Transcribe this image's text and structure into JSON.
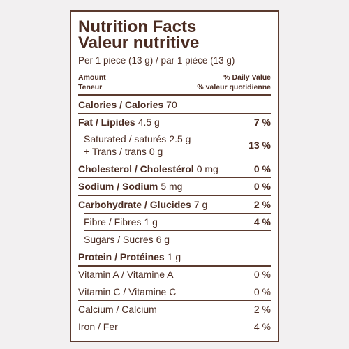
{
  "label": {
    "title": "Nutrition Facts",
    "title_fr": "Valeur nutritive",
    "serving": "Per 1 piece (13 g) / par 1 pièce (13 g)",
    "header": {
      "amount": "Amount",
      "amount_fr": "Teneur",
      "daily_value": "% Daily Value",
      "daily_value_fr": "% valeur quotidienne"
    },
    "rows": [
      {
        "name": "Calories / Calories",
        "amount": "70"
      },
      {
        "name": "Fat / Lipides",
        "amount": "4.5 g",
        "dv": "7 %"
      },
      {
        "name": "Saturated / saturés",
        "amount": "2.5 g",
        "dv": "13 %"
      },
      {
        "name": "+ Trans / trans",
        "amount": "0 g"
      },
      {
        "name": "Cholesterol / Cholestérol",
        "amount": "0 mg",
        "dv": "0 %"
      },
      {
        "name": "Sodium / Sodium",
        "amount": "5 mg",
        "dv": "0 %"
      },
      {
        "name": "Carbohydrate / Glucides",
        "amount": "7 g",
        "dv": "2 %"
      },
      {
        "name": "Fibre / Fibres",
        "amount": "1 g",
        "dv": "4 %"
      },
      {
        "name": "Sugars / Sucres",
        "amount": "6 g"
      },
      {
        "name": "Protein / Protéines",
        "amount": "1 g"
      },
      {
        "name": "Vitamin A / Vitamine A",
        "dv": "0 %"
      },
      {
        "name": "Vitamin C / Vitamine C",
        "dv": "0 %"
      },
      {
        "name": "Calcium / Calcium",
        "dv": "2 %"
      },
      {
        "name": "Iron / Fer",
        "dv": "4 %"
      }
    ]
  }
}
